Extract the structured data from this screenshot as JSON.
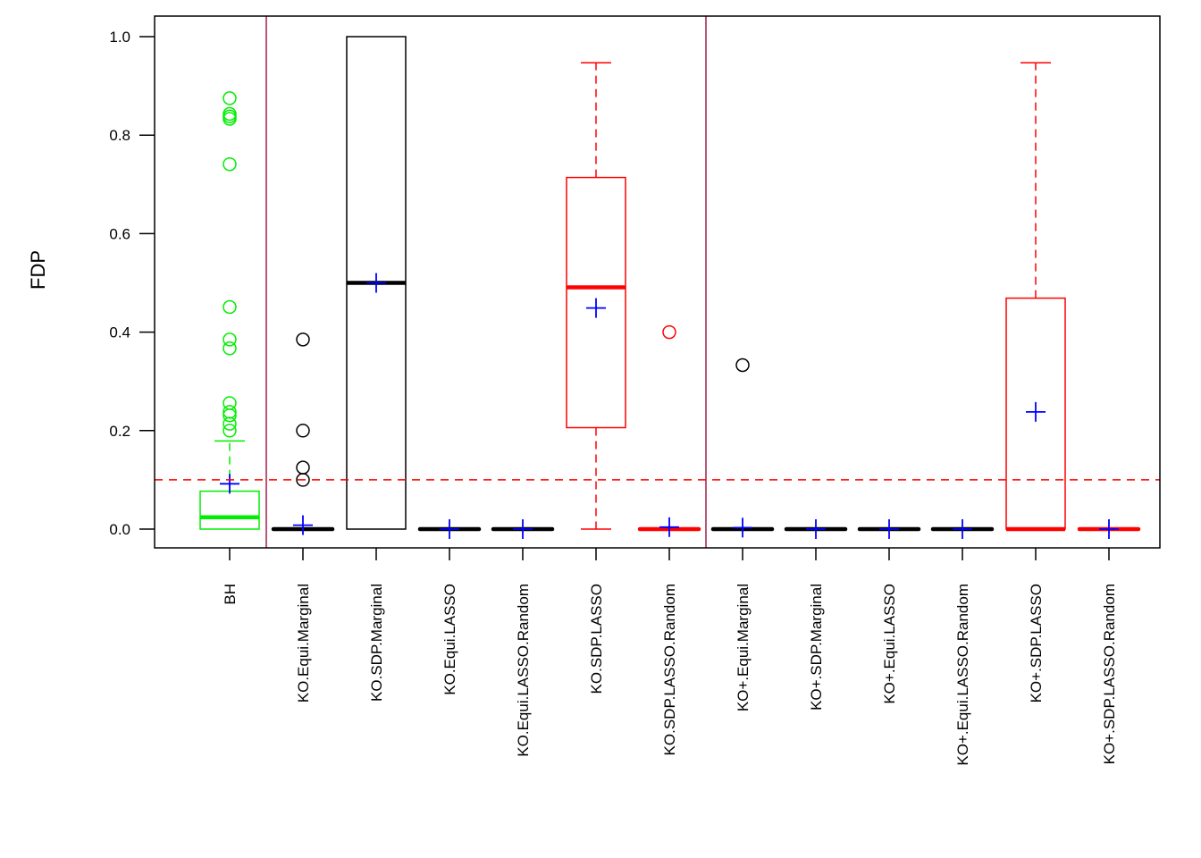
{
  "chart_data": {
    "type": "boxplot",
    "title": "",
    "xlabel": "",
    "ylabel": "FDP",
    "ylim": [
      -0.04,
      1.04
    ],
    "yticks": [
      0.0,
      0.2,
      0.4,
      0.6,
      0.8,
      1.0
    ],
    "ytick_labels": [
      "0.0",
      "0.2",
      "0.4",
      "0.6",
      "0.8",
      "1.0"
    ],
    "grid": false,
    "reference_line": {
      "y": 0.1,
      "style": "dashed",
      "color": "#ff0000"
    },
    "group_separators_after": [
      0,
      6
    ],
    "separator_color": "#a0204a",
    "mean_marker_color": "#0000ff",
    "categories": [
      "BH",
      "KO.Equi.Marginal",
      "KO.SDP.Marginal",
      "KO.Equi.LASSO",
      "KO.Equi.LASSO.Random",
      "KO.SDP.LASSO",
      "KO.SDP.LASSO.Random",
      "KO+.Equi.Marginal",
      "KO+.SDP.Marginal",
      "KO+.Equi.LASSO",
      "KO+.Equi.LASSO.Random",
      "KO+.SDP.LASSO",
      "KO+.SDP.LASSO.Random"
    ],
    "boxes": [
      {
        "name": "BH",
        "color": "#00ee00",
        "whisker_low": 0.0,
        "q1": 0.0,
        "median": 0.024,
        "q3": 0.077,
        "whisker_high": 0.179,
        "mean": 0.092,
        "outliers": [
          0.875,
          0.843,
          0.838,
          0.833,
          0.741,
          0.451,
          0.385,
          0.367,
          0.256,
          0.238,
          0.231,
          0.214,
          0.2
        ]
      },
      {
        "name": "KO.Equi.Marginal",
        "color": "#000000",
        "whisker_low": 0.0,
        "q1": 0.0,
        "median": 0.0,
        "q3": 0.0,
        "whisker_high": 0.0,
        "mean": 0.008,
        "outliers": [
          0.385,
          0.2,
          0.125,
          0.1
        ]
      },
      {
        "name": "KO.SDP.Marginal",
        "color": "#000000",
        "whisker_low": 0.0,
        "q1": 0.0,
        "median": 0.5,
        "q3": 1.0,
        "whisker_high": 1.0,
        "mean": 0.5,
        "outliers": []
      },
      {
        "name": "KO.Equi.LASSO",
        "color": "#000000",
        "whisker_low": 0.0,
        "q1": 0.0,
        "median": 0.0,
        "q3": 0.0,
        "whisker_high": 0.0,
        "mean": 0.0,
        "outliers": []
      },
      {
        "name": "KO.Equi.LASSO.Random",
        "color": "#000000",
        "whisker_low": 0.0,
        "q1": 0.0,
        "median": 0.0,
        "q3": 0.0,
        "whisker_high": 0.0,
        "mean": 0.0,
        "outliers": []
      },
      {
        "name": "KO.SDP.LASSO",
        "color": "#ff0000",
        "whisker_low": 0.0,
        "q1": 0.206,
        "median": 0.491,
        "q3": 0.714,
        "whisker_high": 0.947,
        "mean": 0.449,
        "outliers": []
      },
      {
        "name": "KO.SDP.LASSO.Random",
        "color": "#ff0000",
        "whisker_low": 0.0,
        "q1": 0.0,
        "median": 0.0,
        "q3": 0.0,
        "whisker_high": 0.0,
        "mean": 0.004,
        "outliers": [
          0.4
        ]
      },
      {
        "name": "KO+.Equi.Marginal",
        "color": "#000000",
        "whisker_low": 0.0,
        "q1": 0.0,
        "median": 0.0,
        "q3": 0.0,
        "whisker_high": 0.0,
        "mean": 0.003,
        "outliers": [
          0.333
        ]
      },
      {
        "name": "KO+.SDP.Marginal",
        "color": "#000000",
        "whisker_low": 0.0,
        "q1": 0.0,
        "median": 0.0,
        "q3": 0.0,
        "whisker_high": 0.0,
        "mean": 0.0,
        "outliers": []
      },
      {
        "name": "KO+.Equi.LASSO",
        "color": "#000000",
        "whisker_low": 0.0,
        "q1": 0.0,
        "median": 0.0,
        "q3": 0.0,
        "whisker_high": 0.0,
        "mean": 0.0,
        "outliers": []
      },
      {
        "name": "KO+.Equi.LASSO.Random",
        "color": "#000000",
        "whisker_low": 0.0,
        "q1": 0.0,
        "median": 0.0,
        "q3": 0.0,
        "whisker_high": 0.0,
        "mean": 0.0,
        "outliers": []
      },
      {
        "name": "KO+.SDP.LASSO",
        "color": "#ff0000",
        "whisker_low": 0.0,
        "q1": 0.0,
        "median": 0.0,
        "q3": 0.469,
        "whisker_high": 0.947,
        "mean": 0.238,
        "outliers": []
      },
      {
        "name": "KO+.SDP.LASSO.Random",
        "color": "#ff0000",
        "whisker_low": 0.0,
        "q1": 0.0,
        "median": 0.0,
        "q3": 0.0,
        "whisker_high": 0.0,
        "mean": 0.0,
        "outliers": []
      }
    ]
  }
}
